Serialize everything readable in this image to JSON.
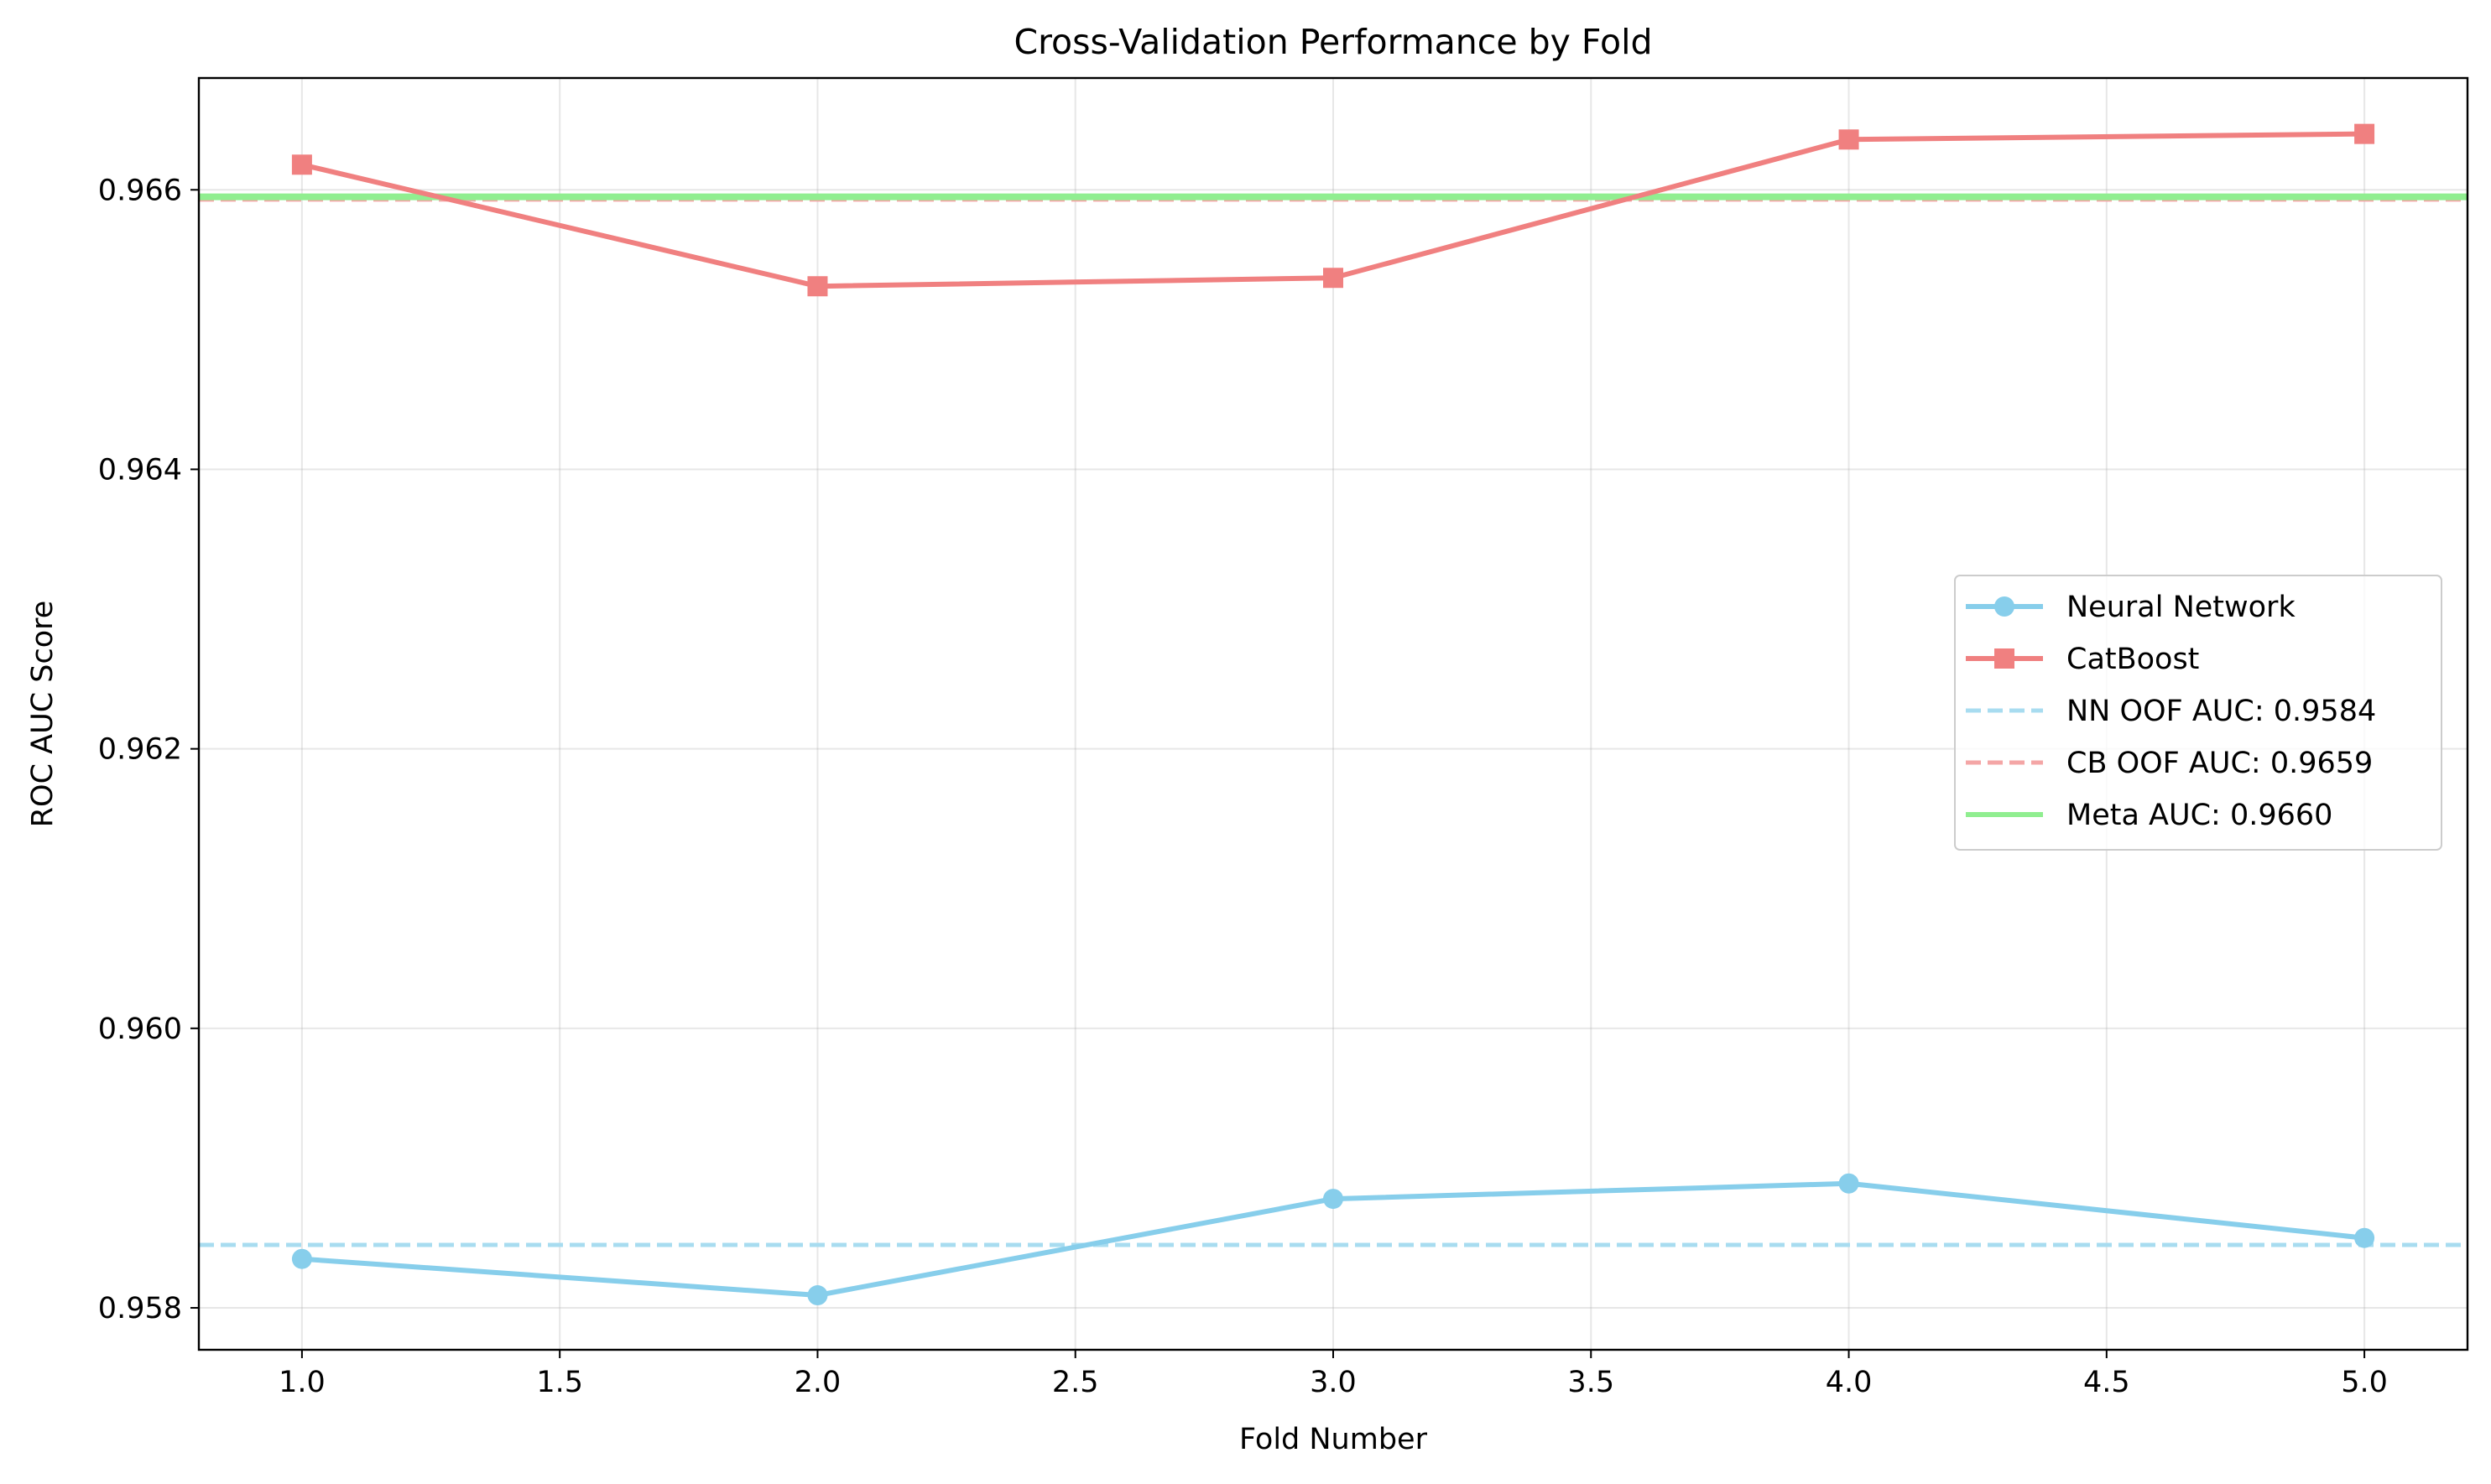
{
  "chart_data": {
    "type": "line",
    "title": "Cross-Validation Performance by Fold",
    "xlabel": "Fold Number",
    "ylabel": "ROC AUC Score",
    "xlim": [
      0.8,
      5.2
    ],
    "ylim": [
      0.9577,
      0.9668
    ],
    "xticks": [
      1.0,
      1.5,
      2.0,
      2.5,
      3.0,
      3.5,
      4.0,
      4.5,
      5.0
    ],
    "xtick_labels": [
      "1.0",
      "1.5",
      "2.0",
      "2.5",
      "3.0",
      "3.5",
      "4.0",
      "4.5",
      "5.0"
    ],
    "yticks": [
      0.958,
      0.96,
      0.962,
      0.964,
      0.966
    ],
    "ytick_labels": [
      "0.958",
      "0.960",
      "0.962",
      "0.964",
      "0.966"
    ],
    "grid": true,
    "legend_position": "center-right",
    "series": [
      {
        "name": "Neural Network",
        "x": [
          1,
          2,
          3,
          4,
          5
        ],
        "values": [
          0.95835,
          0.95809,
          0.95878,
          0.95889,
          0.9585
        ],
        "color": "#87CEEB",
        "marker": "circle",
        "style": "solid"
      },
      {
        "name": "CatBoost",
        "x": [
          1,
          2,
          3,
          4,
          5
        ],
        "values": [
          0.96618,
          0.96531,
          0.96537,
          0.96636,
          0.9664
        ],
        "color": "#F08080",
        "marker": "square",
        "style": "solid"
      }
    ],
    "reference_lines": [
      {
        "label": "NN OOF AUC: 0.9584",
        "value": 0.95845,
        "color": "#A8DCF0",
        "style": "dashed"
      },
      {
        "label": "CB OOF AUC: 0.9659",
        "value": 0.96593,
        "color": "#F4A6A6",
        "style": "dashed"
      },
      {
        "label": "Meta AUC: 0.9660",
        "value": 0.96595,
        "color": "#90EE90",
        "style": "solid"
      }
    ]
  }
}
